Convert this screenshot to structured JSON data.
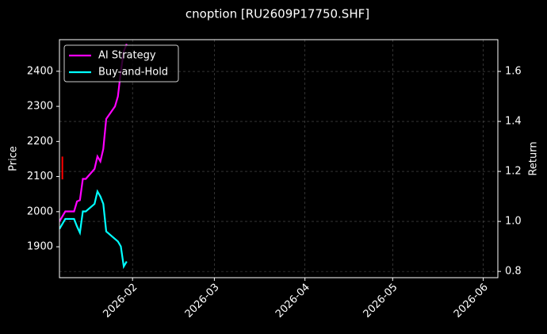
{
  "chart_data": {
    "type": "line",
    "title": "cnoption [RU2609P17750.SHF]",
    "ylabel": "Price",
    "y2label": "Return",
    "xlim": [
      "2026-01-07",
      "2026-06-06"
    ],
    "xticks": [
      {
        "value": "2026-02-01",
        "label": "2026-02"
      },
      {
        "value": "2026-03-01",
        "label": "2026-03"
      },
      {
        "value": "2026-04-01",
        "label": "2026-04"
      },
      {
        "value": "2026-05-01",
        "label": "2026-05"
      },
      {
        "value": "2026-06-01",
        "label": "2026-06"
      }
    ],
    "ylim": [
      1812,
      2490
    ],
    "yticks": [
      1900,
      2000,
      2100,
      2200,
      2300,
      2400
    ],
    "y2lim": [
      0.775,
      1.727
    ],
    "y2ticks": [
      0.8,
      {
        "value": 1.0,
        "label": "1.0"
      },
      1.2,
      1.4,
      1.6
    ],
    "grid": true,
    "legend": "upper left",
    "x": [
      "2026-01-07",
      "2026-01-09",
      "2026-01-12",
      "2026-01-13",
      "2026-01-14",
      "2026-01-15",
      "2026-01-16",
      "2026-01-19",
      "2026-01-20",
      "2026-01-21",
      "2026-01-22",
      "2026-01-23",
      "2026-01-26",
      "2026-01-27",
      "2026-01-28",
      "2026-01-29",
      "2026-01-30"
    ],
    "series": [
      {
        "name": "AI Strategy",
        "color": "#ff00ff",
        "axis": "y2",
        "values": [
          1.0,
          1.04,
          1.04,
          1.08,
          1.085,
          1.17,
          1.17,
          1.21,
          1.26,
          1.24,
          1.29,
          1.41,
          1.46,
          1.5,
          1.6,
          1.68,
          1.71
        ]
      },
      {
        "name": "Buy-and-Hold",
        "color": "#00ffff",
        "axis": "y2",
        "values": [
          0.97,
          1.01,
          1.01,
          0.98,
          0.955,
          1.04,
          1.04,
          1.07,
          1.12,
          1.1,
          1.07,
          0.96,
          0.93,
          0.92,
          0.9,
          0.82,
          0.84
        ]
      }
    ],
    "price_marks": {
      "color": "#ff0000",
      "x": [
        "2026-01-08"
      ],
      "high": [
        2157
      ],
      "low": [
        2092
      ]
    }
  }
}
